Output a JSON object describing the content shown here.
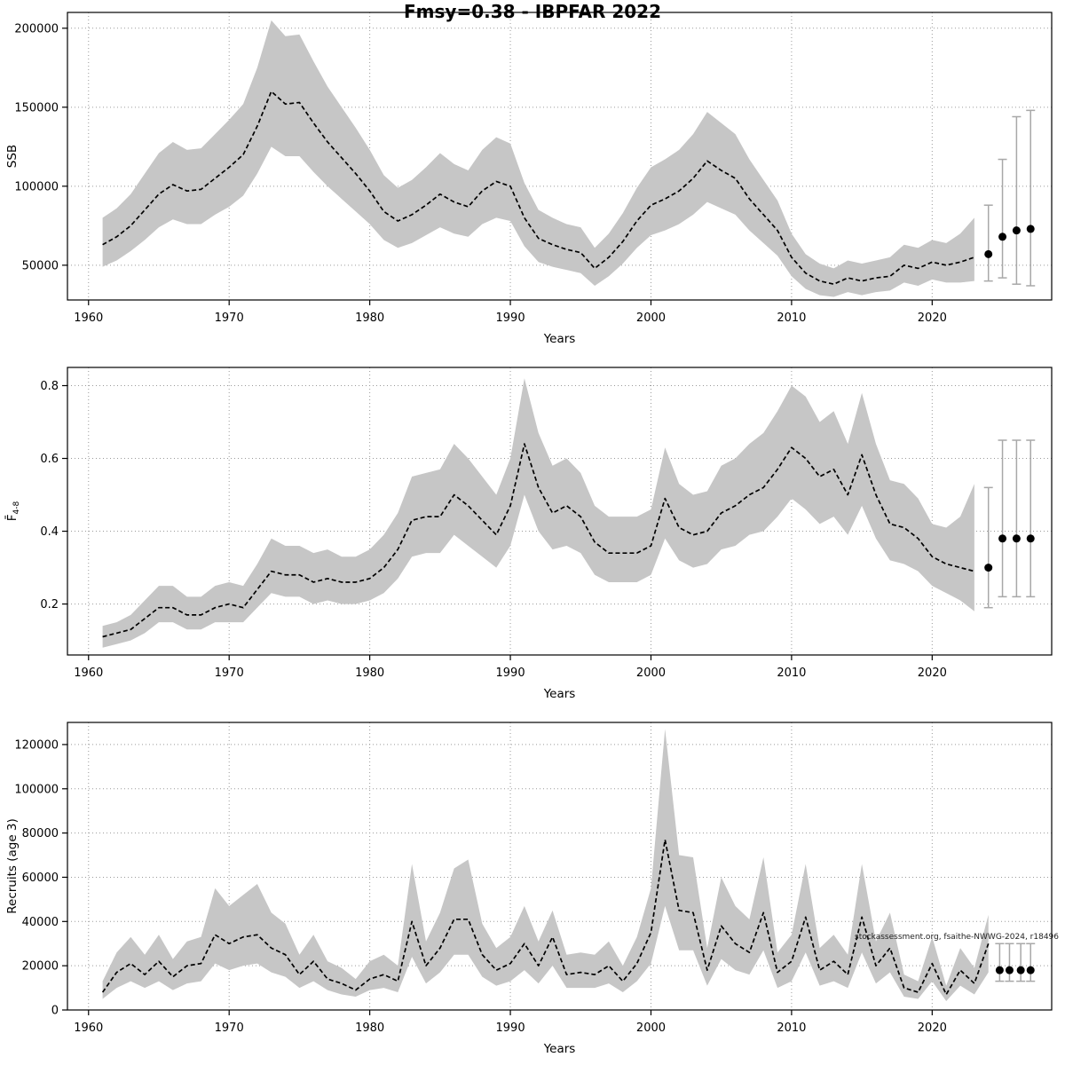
{
  "page": {
    "watermark": "stockassessment.org, fsaithe-NWWG-2024, r18496"
  },
  "chart_data": [
    {
      "type": "line",
      "name": "ssb",
      "title": "Fmsy=0.38 - IBPFAR 2022",
      "xlabel": "Years",
      "ylabel": "SSB",
      "ylabel_sub": "",
      "xlim": [
        1958.5,
        2028.5
      ],
      "ylim": [
        28000,
        210000
      ],
      "x_ticks": [
        1960,
        1970,
        1980,
        1990,
        2000,
        2010,
        2020
      ],
      "x_tick_labels": [
        "1960",
        "1970",
        "1980",
        "1990",
        "2000",
        "2010",
        "2020"
      ],
      "y_ticks": [
        50000,
        100000,
        150000,
        200000
      ],
      "y_tick_labels": [
        "50000",
        "100000",
        "150000",
        "200000"
      ],
      "band_color": "#c6c6c6",
      "grid": true,
      "legend": "none",
      "years": [
        1961,
        1962,
        1963,
        1964,
        1965,
        1966,
        1967,
        1968,
        1969,
        1970,
        1971,
        1972,
        1973,
        1974,
        1975,
        1976,
        1977,
        1978,
        1979,
        1980,
        1981,
        1982,
        1983,
        1984,
        1985,
        1986,
        1987,
        1988,
        1989,
        1990,
        1991,
        1992,
        1993,
        1994,
        1995,
        1996,
        1997,
        1998,
        1999,
        2000,
        2001,
        2002,
        2003,
        2004,
        2005,
        2006,
        2007,
        2008,
        2009,
        2010,
        2011,
        2012,
        2013,
        2014,
        2015,
        2016,
        2017,
        2018,
        2019,
        2020,
        2021,
        2022,
        2023
      ],
      "mean": [
        63000,
        68000,
        75000,
        85000,
        95000,
        101000,
        97000,
        98000,
        105000,
        112000,
        120000,
        138000,
        160000,
        152000,
        153000,
        140000,
        128000,
        118000,
        108000,
        97000,
        84000,
        78000,
        82000,
        88000,
        95000,
        90000,
        87000,
        97000,
        103000,
        100000,
        80000,
        67000,
        63000,
        60000,
        58000,
        48000,
        55000,
        65000,
        78000,
        88000,
        92000,
        97000,
        105000,
        116000,
        110000,
        105000,
        92000,
        82000,
        72000,
        55000,
        45000,
        40000,
        38000,
        42000,
        40000,
        42000,
        43000,
        50000,
        48000,
        52000,
        50000,
        52000,
        55000
      ],
      "lower": [
        49000,
        53000,
        59000,
        66000,
        74000,
        79000,
        76000,
        76000,
        82000,
        87000,
        94000,
        108000,
        125000,
        119000,
        119000,
        109000,
        100000,
        92000,
        84000,
        76000,
        66000,
        61000,
        64000,
        69000,
        74000,
        70000,
        68000,
        76000,
        80000,
        78000,
        62000,
        52000,
        49000,
        47000,
        45000,
        37000,
        43000,
        51000,
        61000,
        69000,
        72000,
        76000,
        82000,
        90000,
        86000,
        82000,
        72000,
        64000,
        56000,
        43000,
        35000,
        31000,
        30000,
        33000,
        31000,
        33000,
        34000,
        39000,
        37000,
        41000,
        39000,
        39000,
        40000
      ],
      "upper": [
        80000,
        86000,
        95000,
        108000,
        121000,
        128000,
        123000,
        124000,
        133000,
        142000,
        152000,
        175000,
        205000,
        195000,
        196000,
        179000,
        163000,
        150000,
        137000,
        123000,
        107000,
        99000,
        104000,
        112000,
        121000,
        114000,
        110000,
        123000,
        131000,
        127000,
        102000,
        85000,
        80000,
        76000,
        74000,
        61000,
        70000,
        83000,
        99000,
        112000,
        117000,
        123000,
        133000,
        147000,
        140000,
        133000,
        117000,
        104000,
        91000,
        70000,
        57000,
        51000,
        48000,
        53000,
        51000,
        53000,
        55000,
        63000,
        61000,
        66000,
        64000,
        70000,
        80000
      ],
      "forecast": {
        "years": [
          2024,
          2025,
          2026,
          2027
        ],
        "mean": [
          57000,
          68000,
          72000,
          73000
        ],
        "lower": [
          40000,
          42000,
          38000,
          37000
        ],
        "upper": [
          88000,
          117000,
          144000,
          148000
        ]
      }
    },
    {
      "type": "line",
      "name": "f",
      "title": "",
      "xlabel": "Years",
      "ylabel": "F̄",
      "ylabel_sub": "4-8",
      "xlim": [
        1958.5,
        2028.5
      ],
      "ylim": [
        0.06,
        0.85
      ],
      "x_ticks": [
        1960,
        1970,
        1980,
        1990,
        2000,
        2010,
        2020
      ],
      "x_tick_labels": [
        "1960",
        "1970",
        "1980",
        "1990",
        "2000",
        "2010",
        "2020"
      ],
      "y_ticks": [
        0.2,
        0.4,
        0.6,
        0.8
      ],
      "y_tick_labels": [
        "0.2",
        "0.4",
        "0.6",
        "0.8"
      ],
      "band_color": "#c6c6c6",
      "grid": true,
      "legend": "none",
      "years": [
        1961,
        1962,
        1963,
        1964,
        1965,
        1966,
        1967,
        1968,
        1969,
        1970,
        1971,
        1972,
        1973,
        1974,
        1975,
        1976,
        1977,
        1978,
        1979,
        1980,
        1981,
        1982,
        1983,
        1984,
        1985,
        1986,
        1987,
        1988,
        1989,
        1990,
        1991,
        1992,
        1993,
        1994,
        1995,
        1996,
        1997,
        1998,
        1999,
        2000,
        2001,
        2002,
        2003,
        2004,
        2005,
        2006,
        2007,
        2008,
        2009,
        2010,
        2011,
        2012,
        2013,
        2014,
        2015,
        2016,
        2017,
        2018,
        2019,
        2020,
        2021,
        2022,
        2023
      ],
      "mean": [
        0.11,
        0.12,
        0.13,
        0.16,
        0.19,
        0.19,
        0.17,
        0.17,
        0.19,
        0.2,
        0.19,
        0.24,
        0.29,
        0.28,
        0.28,
        0.26,
        0.27,
        0.26,
        0.26,
        0.27,
        0.3,
        0.35,
        0.43,
        0.44,
        0.44,
        0.5,
        0.47,
        0.43,
        0.39,
        0.47,
        0.64,
        0.52,
        0.45,
        0.47,
        0.44,
        0.37,
        0.34,
        0.34,
        0.34,
        0.36,
        0.49,
        0.41,
        0.39,
        0.4,
        0.45,
        0.47,
        0.5,
        0.52,
        0.57,
        0.63,
        0.6,
        0.55,
        0.57,
        0.5,
        0.61,
        0.5,
        0.42,
        0.41,
        0.38,
        0.33,
        0.31,
        0.3,
        0.29
      ],
      "lower": [
        0.08,
        0.09,
        0.1,
        0.12,
        0.15,
        0.15,
        0.13,
        0.13,
        0.15,
        0.15,
        0.15,
        0.19,
        0.23,
        0.22,
        0.22,
        0.2,
        0.21,
        0.2,
        0.2,
        0.21,
        0.23,
        0.27,
        0.33,
        0.34,
        0.34,
        0.39,
        0.36,
        0.33,
        0.3,
        0.36,
        0.5,
        0.4,
        0.35,
        0.36,
        0.34,
        0.28,
        0.26,
        0.26,
        0.26,
        0.28,
        0.38,
        0.32,
        0.3,
        0.31,
        0.35,
        0.36,
        0.39,
        0.4,
        0.44,
        0.49,
        0.46,
        0.42,
        0.44,
        0.39,
        0.47,
        0.38,
        0.32,
        0.31,
        0.29,
        0.25,
        0.23,
        0.21,
        0.18
      ],
      "upper": [
        0.14,
        0.15,
        0.17,
        0.21,
        0.25,
        0.25,
        0.22,
        0.22,
        0.25,
        0.26,
        0.25,
        0.31,
        0.38,
        0.36,
        0.36,
        0.34,
        0.35,
        0.33,
        0.33,
        0.35,
        0.39,
        0.45,
        0.55,
        0.56,
        0.57,
        0.64,
        0.6,
        0.55,
        0.5,
        0.6,
        0.82,
        0.67,
        0.58,
        0.6,
        0.56,
        0.47,
        0.44,
        0.44,
        0.44,
        0.46,
        0.63,
        0.53,
        0.5,
        0.51,
        0.58,
        0.6,
        0.64,
        0.67,
        0.73,
        0.8,
        0.77,
        0.7,
        0.73,
        0.64,
        0.78,
        0.64,
        0.54,
        0.53,
        0.49,
        0.42,
        0.41,
        0.44,
        0.53
      ],
      "forecast": {
        "years": [
          2024,
          2025,
          2026,
          2027
        ],
        "mean": [
          0.3,
          0.38,
          0.38,
          0.38
        ],
        "lower": [
          0.19,
          0.22,
          0.22,
          0.22
        ],
        "upper": [
          0.52,
          0.65,
          0.65,
          0.65
        ]
      }
    },
    {
      "type": "line",
      "name": "rec",
      "title": "",
      "xlabel": "Years",
      "ylabel": "Recruits (age 3)",
      "ylabel_sub": "",
      "xlim": [
        1958.5,
        2028.5
      ],
      "ylim": [
        0,
        130000
      ],
      "x_ticks": [
        1960,
        1970,
        1980,
        1990,
        2000,
        2010,
        2020
      ],
      "x_tick_labels": [
        "1960",
        "1970",
        "1980",
        "1990",
        "2000",
        "2010",
        "2020"
      ],
      "y_ticks": [
        0,
        20000,
        40000,
        60000,
        80000,
        100000,
        120000
      ],
      "y_tick_labels": [
        "0",
        "20000",
        "40000",
        "60000",
        "80000",
        "100000",
        "120000"
      ],
      "band_color": "#c6c6c6",
      "grid": true,
      "legend": "none",
      "years": [
        1961,
        1962,
        1963,
        1964,
        1965,
        1966,
        1967,
        1968,
        1969,
        1970,
        1971,
        1972,
        1973,
        1974,
        1975,
        1976,
        1977,
        1978,
        1979,
        1980,
        1981,
        1982,
        1983,
        1984,
        1985,
        1986,
        1987,
        1988,
        1989,
        1990,
        1991,
        1992,
        1993,
        1994,
        1995,
        1996,
        1997,
        1998,
        1999,
        2000,
        2001,
        2002,
        2003,
        2004,
        2005,
        2006,
        2007,
        2008,
        2009,
        2010,
        2011,
        2012,
        2013,
        2014,
        2015,
        2016,
        2017,
        2018,
        2019,
        2020,
        2021,
        2022,
        2023,
        2024
      ],
      "mean": [
        8000,
        17000,
        21000,
        16000,
        22000,
        15000,
        20000,
        21000,
        34000,
        30000,
        33000,
        34000,
        28000,
        25000,
        16000,
        22000,
        14000,
        12000,
        9000,
        14000,
        16000,
        13000,
        40000,
        20000,
        28000,
        41000,
        41000,
        25000,
        18000,
        21000,
        30000,
        20000,
        33000,
        16000,
        17000,
        16000,
        20000,
        13000,
        21000,
        35000,
        77000,
        45000,
        44000,
        18000,
        38000,
        30000,
        26000,
        44000,
        17000,
        22000,
        42000,
        18000,
        22000,
        16000,
        42000,
        20000,
        28000,
        10000,
        8000,
        21000,
        7000,
        18000,
        12000,
        30000
      ],
      "lower": [
        5000,
        10000,
        13000,
        10000,
        13000,
        9000,
        12000,
        13000,
        21000,
        18000,
        20000,
        21000,
        17000,
        15000,
        10000,
        13000,
        9000,
        7000,
        6000,
        9000,
        10000,
        8000,
        24000,
        12000,
        17000,
        25000,
        25000,
        15000,
        11000,
        13000,
        18000,
        12000,
        20000,
        10000,
        10000,
        10000,
        12000,
        8000,
        13000,
        21000,
        47000,
        27000,
        27000,
        11000,
        23000,
        18000,
        16000,
        27000,
        10000,
        13000,
        26000,
        11000,
        13000,
        10000,
        26000,
        12000,
        17000,
        6000,
        5000,
        13000,
        4000,
        11000,
        7000,
        17000
      ],
      "upper": [
        13000,
        26000,
        33000,
        25000,
        34000,
        23000,
        31000,
        33000,
        55000,
        47000,
        52000,
        57000,
        44000,
        39000,
        25000,
        34000,
        22000,
        19000,
        14000,
        22000,
        25000,
        20000,
        66000,
        31000,
        44000,
        64000,
        68000,
        39000,
        28000,
        33000,
        47000,
        31000,
        45000,
        25000,
        26000,
        25000,
        31000,
        20000,
        33000,
        55000,
        127000,
        70000,
        69000,
        28000,
        60000,
        47000,
        41000,
        69000,
        26000,
        34000,
        66000,
        28000,
        34000,
        25000,
        66000,
        31000,
        44000,
        16000,
        13000,
        33000,
        11000,
        28000,
        19000,
        43000
      ],
      "forecast": {
        "years": [
          2024.8,
          2025.5,
          2026.3,
          2027
        ],
        "mean": [
          18000,
          18000,
          18000,
          18000
        ],
        "lower": [
          13000,
          13000,
          13000,
          13000
        ],
        "upper": [
          30000,
          30000,
          30000,
          30000
        ]
      }
    }
  ]
}
